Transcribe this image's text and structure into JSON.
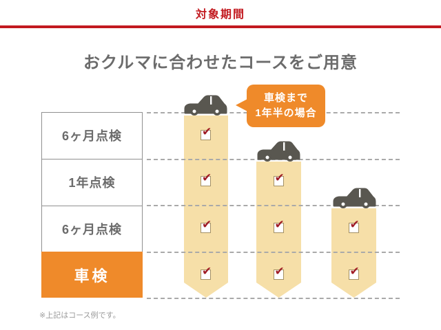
{
  "header": {
    "label": "対象期間",
    "title": "おクルマに合わせたコースをご用意"
  },
  "bubble": {
    "line1": "車検まで",
    "line2": "1年半の場合"
  },
  "footer": {
    "note": "※上記はコース例です。"
  },
  "icons": {
    "car": "car-icon",
    "checkbox": "checked-checkbox-icon",
    "check_glyph": "✔"
  },
  "colors": {
    "red": "#c2191f",
    "orange": "#ef8a2a",
    "band_cream": "#f6dfa8",
    "text_gray": "#6b6b6b",
    "car_gray": "#595750",
    "check_red": "#a01d27"
  },
  "chart_data": {
    "type": "table",
    "title": "おクルマに合わせたコースをご用意",
    "rows": [
      "6ヶ月点検",
      "1年点検",
      "6ヶ月点検",
      "車検"
    ],
    "highlight_row_index": 3,
    "columns": [
      {
        "id": "course-1",
        "annotation": "車検まで1年半の場合",
        "checks": [
          true,
          true,
          true,
          true
        ]
      },
      {
        "id": "course-2",
        "annotation": "",
        "checks": [
          false,
          true,
          true,
          true
        ]
      },
      {
        "id": "course-3",
        "annotation": "",
        "checks": [
          false,
          false,
          true,
          true
        ]
      }
    ],
    "grid": "dashed-horizontal",
    "legend_position": "none"
  }
}
